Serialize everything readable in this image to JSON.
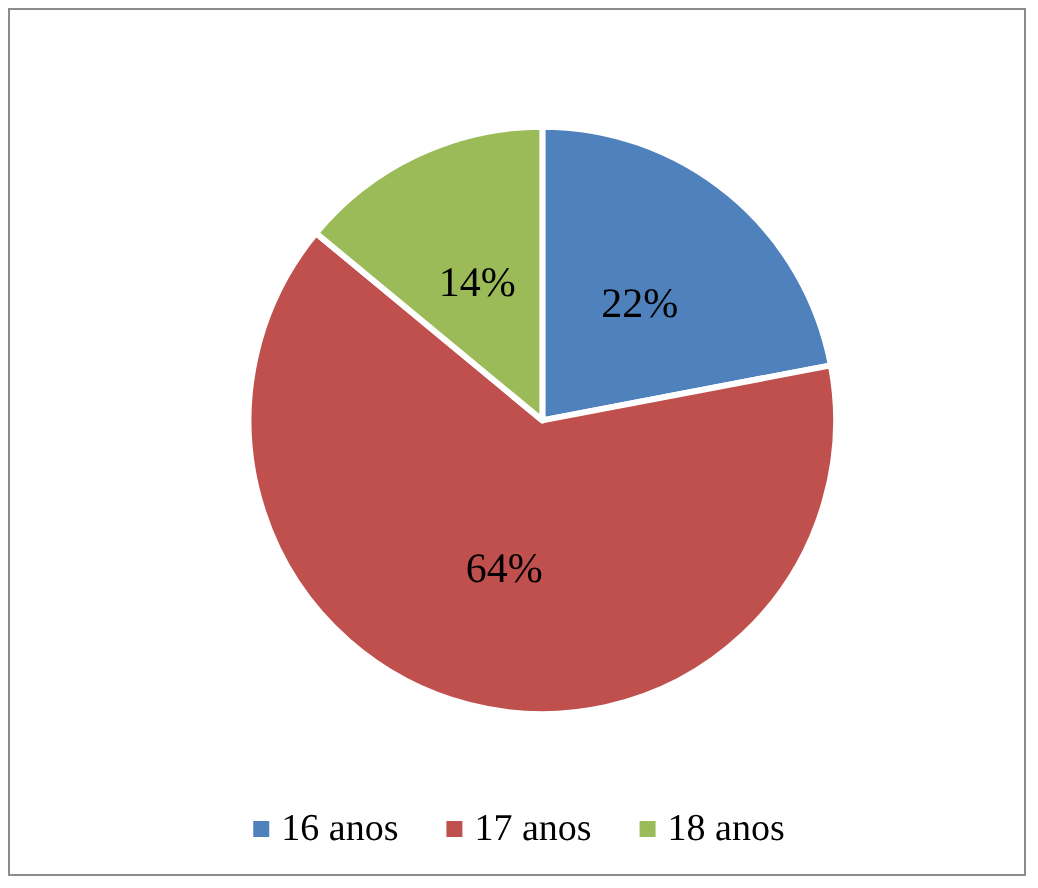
{
  "chart_data": {
    "type": "pie",
    "categories": [
      "16 anos",
      "17 anos",
      "18 anos"
    ],
    "values": [
      22,
      64,
      14
    ],
    "colors": [
      "#4f81bd",
      "#c0504d",
      "#9bbb59"
    ],
    "value_labels": [
      "22%",
      "64%",
      "14%"
    ],
    "legend": "bottom"
  }
}
